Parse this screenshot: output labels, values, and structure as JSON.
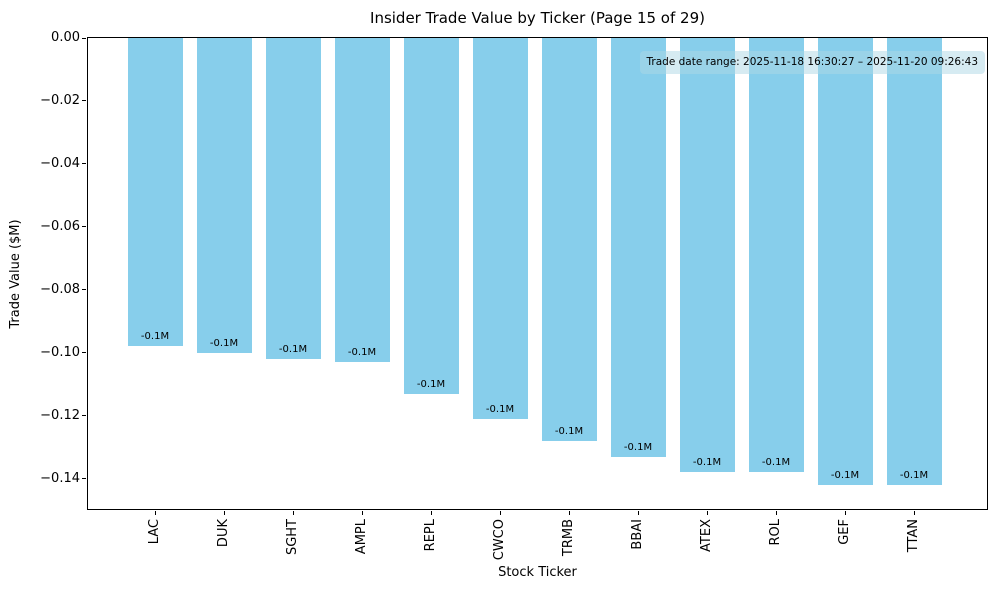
{
  "figure": {
    "title": "Insider Trade Value by Ticker (Page 15 of 29)",
    "xlabel": "Stock Ticker",
    "ylabel": "Trade Value ($M)",
    "annotation_text": "Trade date range: 2025-11-18 16:30:27 – 2025-11-20 09:26:43"
  },
  "chart_data": {
    "type": "bar",
    "title": "Insider Trade Value by Ticker (Page 15 of 29)",
    "xlabel": "Stock Ticker",
    "ylabel": "Trade Value ($M)",
    "categories": [
      "LAC",
      "DUK",
      "SGHT",
      "AMPL",
      "REPL",
      "CWCO",
      "TRMB",
      "BBAI",
      "ATEX",
      "ROL",
      "GEF",
      "TTAN"
    ],
    "values": [
      -0.098,
      -0.1,
      -0.102,
      -0.103,
      -0.113,
      -0.121,
      -0.128,
      -0.133,
      -0.138,
      -0.138,
      -0.142,
      -0.142
    ],
    "bar_labels": [
      "-0.1M",
      "-0.1M",
      "-0.1M",
      "-0.1M",
      "-0.1M",
      "-0.1M",
      "-0.1M",
      "-0.1M",
      "-0.1M",
      "-0.1M",
      "-0.1M",
      "-0.1M"
    ],
    "bar_color": "#87CEEB",
    "annotation": {
      "text": "Trade date range: 2025-11-18 16:30:27 – 2025-11-20 09:26:43",
      "bg_color": "#ADD8E6",
      "bg_alpha": 0.5,
      "position": "top-right"
    },
    "ylim": [
      -0.15,
      0.0
    ],
    "yticks": [
      0.0,
      -0.02,
      -0.04,
      -0.06,
      -0.08,
      -0.1,
      -0.12,
      -0.14
    ],
    "grid": false,
    "legend": null,
    "background": "#FFFFFF",
    "text_color": "#000000"
  }
}
